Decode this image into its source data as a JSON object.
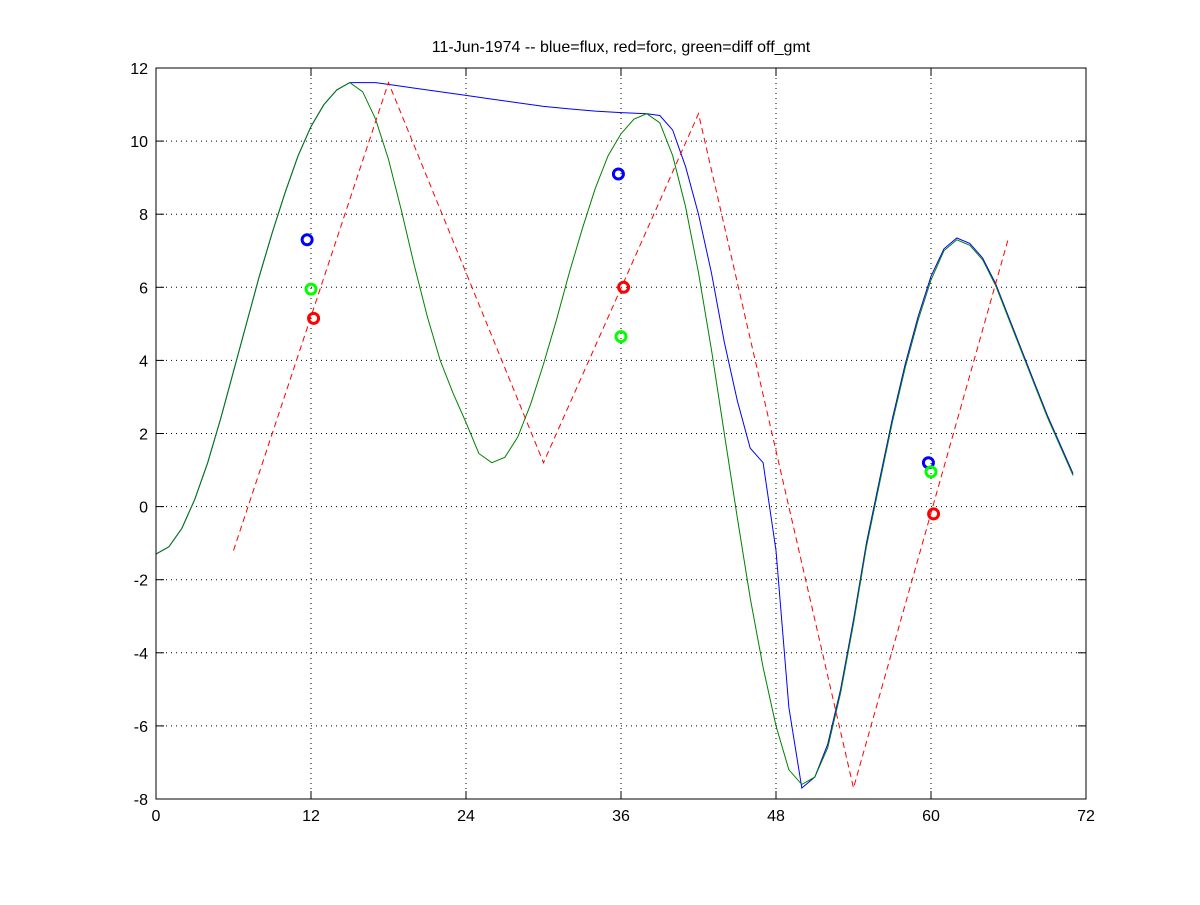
{
  "chart_data": {
    "type": "line",
    "title": "11-Jun-1974 -- blue=flux, red=forc, green=diff off_gmt",
    "xlabel": "",
    "ylabel": "",
    "xlim": [
      0,
      72
    ],
    "ylim": [
      -8,
      12
    ],
    "xticks": [
      0,
      12,
      24,
      36,
      48,
      60,
      72
    ],
    "yticks": [
      -8,
      -6,
      -4,
      -2,
      0,
      2,
      4,
      6,
      8,
      10,
      12
    ],
    "grid": true,
    "series": [
      {
        "name": "flux",
        "color": "#0000ff",
        "style": "solid",
        "x": [
          0,
          1,
          2,
          3,
          4,
          5,
          6,
          7,
          8,
          9,
          10,
          11,
          12,
          13,
          14,
          15,
          16,
          17,
          18,
          20,
          22,
          24,
          26,
          28,
          30,
          32,
          34,
          36,
          38,
          39,
          40,
          41,
          42,
          43,
          44,
          45,
          46,
          47,
          48,
          49,
          50,
          51,
          52,
          53,
          54,
          55,
          56,
          57,
          58,
          59,
          60,
          61,
          62,
          63,
          64,
          65,
          66,
          67,
          68,
          69,
          70,
          71
        ],
        "y": [
          -1.3,
          -1.1,
          -0.6,
          0.2,
          1.2,
          2.4,
          3.7,
          5.0,
          6.3,
          7.5,
          8.6,
          9.6,
          10.4,
          11.0,
          11.4,
          11.6,
          11.6,
          11.6,
          11.55,
          11.45,
          11.35,
          11.25,
          11.15,
          11.05,
          10.95,
          10.88,
          10.82,
          10.78,
          10.75,
          10.7,
          10.3,
          9.3,
          8.0,
          6.4,
          4.5,
          2.9,
          1.6,
          1.2,
          -1.2,
          -5.5,
          -7.7,
          -7.4,
          -6.5,
          -5.0,
          -3.1,
          -1.0,
          0.7,
          2.4,
          3.9,
          5.2,
          6.3,
          7.05,
          7.35,
          7.2,
          6.8,
          6.1,
          5.2,
          4.3,
          3.4,
          2.5,
          1.7,
          0.9
        ]
      },
      {
        "name": "diff",
        "color": "#008000",
        "style": "solid",
        "x": [
          0,
          1,
          2,
          3,
          4,
          5,
          6,
          7,
          8,
          9,
          10,
          11,
          12,
          13,
          14,
          15,
          16,
          17,
          18,
          19,
          20,
          21,
          22,
          23,
          24,
          25,
          26,
          27,
          28,
          29,
          30,
          31,
          32,
          33,
          34,
          35,
          36,
          37,
          38,
          39,
          40,
          41,
          42,
          43,
          44,
          45,
          46,
          47,
          48,
          49,
          50,
          51,
          52,
          53,
          54,
          55,
          56,
          57,
          58,
          59,
          60,
          61,
          62,
          63,
          64,
          65,
          66,
          67,
          68,
          69,
          70,
          71
        ],
        "y": [
          -1.3,
          -1.1,
          -0.6,
          0.2,
          1.2,
          2.4,
          3.7,
          5.0,
          6.3,
          7.5,
          8.6,
          9.6,
          10.4,
          11.0,
          11.4,
          11.6,
          11.35,
          10.6,
          9.5,
          8.1,
          6.6,
          5.2,
          4.0,
          3.1,
          2.3,
          1.45,
          1.2,
          1.35,
          1.9,
          2.8,
          3.9,
          5.1,
          6.4,
          7.6,
          8.7,
          9.6,
          10.2,
          10.6,
          10.75,
          10.5,
          9.6,
          8.2,
          6.4,
          4.3,
          2.0,
          -0.3,
          -2.5,
          -4.4,
          -6.0,
          -7.2,
          -7.6,
          -7.4,
          -6.6,
          -5.1,
          -3.2,
          -1.1,
          0.6,
          2.3,
          3.8,
          5.1,
          6.2,
          7.0,
          7.3,
          7.15,
          6.75,
          6.05,
          5.15,
          4.25,
          3.35,
          2.45,
          1.65,
          0.85
        ]
      },
      {
        "name": "forc",
        "color": "#ff0000",
        "style": "dashed",
        "x": [
          6,
          18,
          30,
          42,
          54,
          66
        ],
        "y": [
          -1.2,
          11.6,
          1.2,
          10.75,
          -7.7,
          7.35
        ]
      }
    ],
    "markers": [
      {
        "series": "flux",
        "color": "#0000ff",
        "x": [
          11.7,
          35.8,
          59.8
        ],
        "y": [
          7.3,
          9.1,
          1.2
        ]
      },
      {
        "series": "diff",
        "color": "#00ff00",
        "x": [
          12.0,
          36.0,
          60.0
        ],
        "y": [
          5.95,
          4.65,
          0.95
        ]
      },
      {
        "series": "forc",
        "color": "#ff0000",
        "x": [
          12.2,
          36.2,
          60.2
        ],
        "y": [
          5.15,
          6.0,
          -0.2
        ]
      }
    ]
  }
}
